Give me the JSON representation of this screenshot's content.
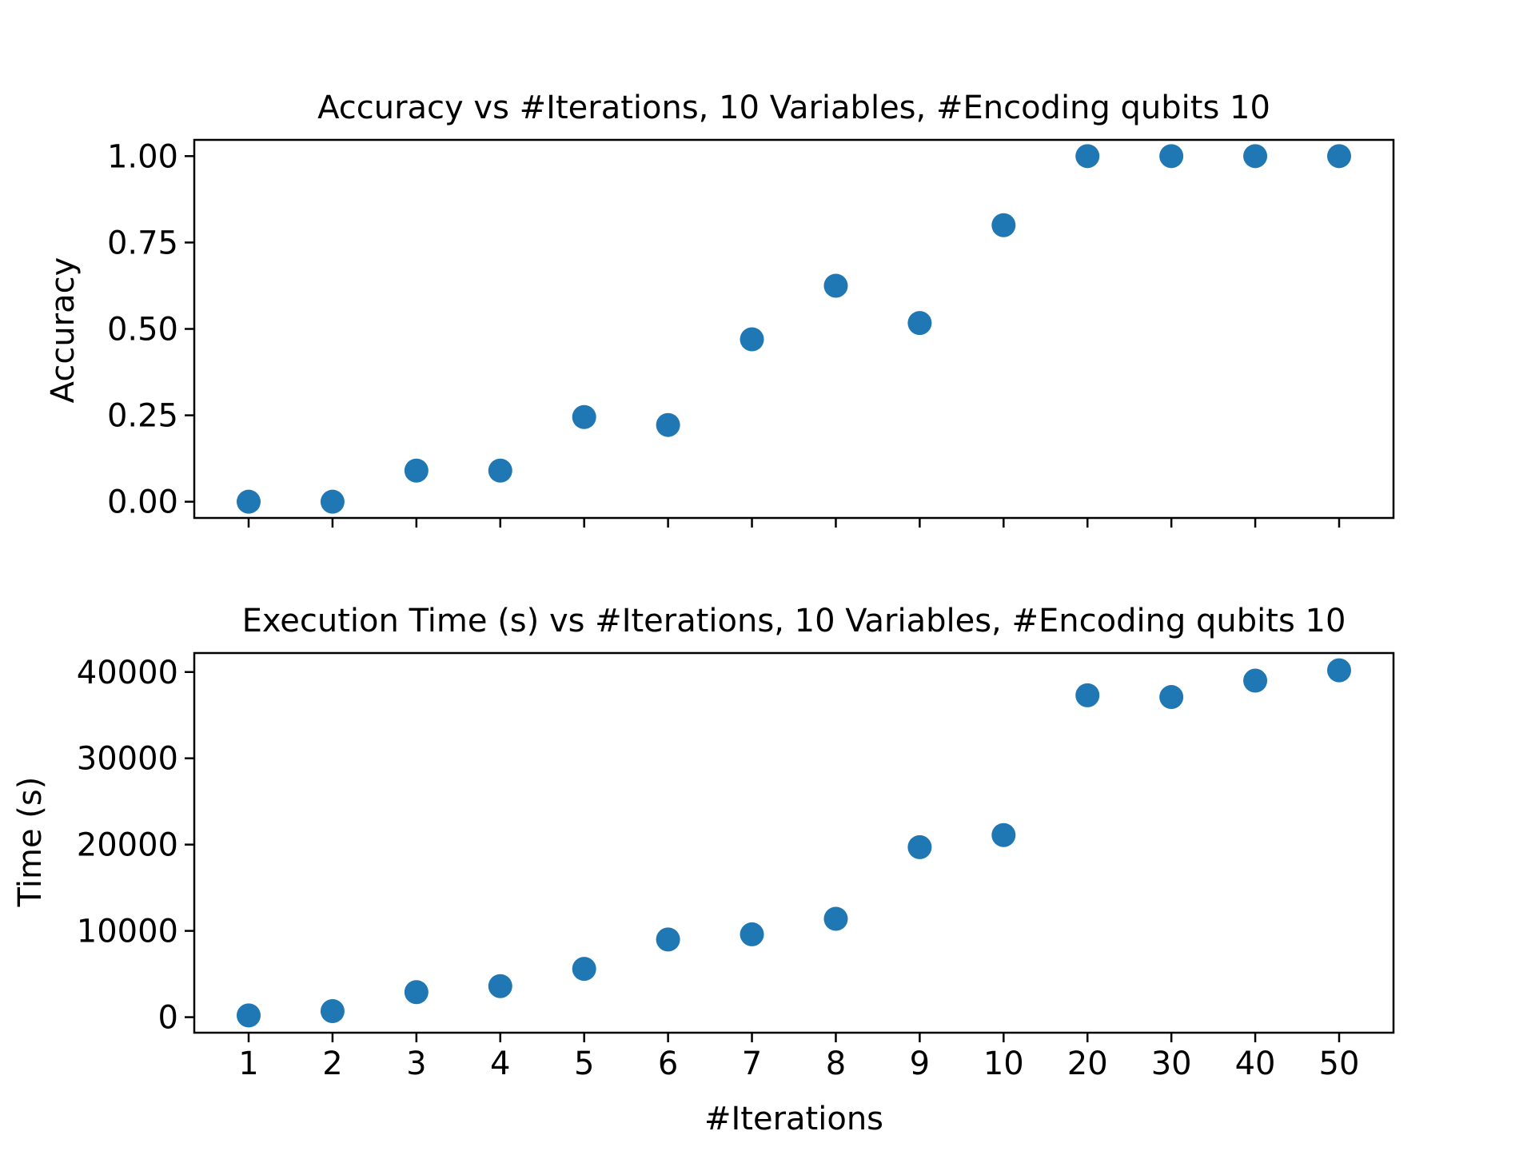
{
  "chart_data": [
    {
      "type": "scatter",
      "title": "Accuracy vs #Iterations, 10 Variables, #Encoding qubits 10",
      "xlabel": "",
      "ylabel": "Accuracy",
      "categories": [
        "1",
        "2",
        "3",
        "4",
        "5",
        "6",
        "7",
        "8",
        "9",
        "10",
        "20",
        "30",
        "40",
        "50"
      ],
      "values": [
        0.0,
        0.0,
        0.09,
        0.09,
        0.245,
        0.222,
        0.47,
        0.625,
        0.517,
        0.8,
        1.0,
        1.0,
        1.0,
        1.0
      ],
      "yticks": [
        0,
        0.25,
        0.5,
        0.75,
        1.0
      ],
      "ytick_labels": [
        "0.00",
        "0.25",
        "0.50",
        "0.75",
        "1.00"
      ],
      "ylim": [
        -0.047,
        1.047
      ],
      "show_xtick_labels": false,
      "grid": false,
      "color": "#1f77b4"
    },
    {
      "type": "scatter",
      "title": "Execution Time (s) vs #Iterations, 10 Variables, #Encoding qubits 10",
      "xlabel": "#Iterations",
      "ylabel": "Time (s)",
      "categories": [
        "1",
        "2",
        "3",
        "4",
        "5",
        "6",
        "7",
        "8",
        "9",
        "10",
        "20",
        "30",
        "40",
        "50"
      ],
      "values": [
        200,
        700,
        2900,
        3600,
        5600,
        9000,
        9600,
        11400,
        19700,
        21100,
        37300,
        37100,
        39000,
        40200
      ],
      "yticks": [
        0,
        10000,
        20000,
        30000,
        40000
      ],
      "ytick_labels": [
        "0",
        "10000",
        "20000",
        "30000",
        "40000"
      ],
      "ylim": [
        -1800,
        42200
      ],
      "show_xtick_labels": true,
      "grid": false,
      "color": "#1f77b4"
    }
  ]
}
